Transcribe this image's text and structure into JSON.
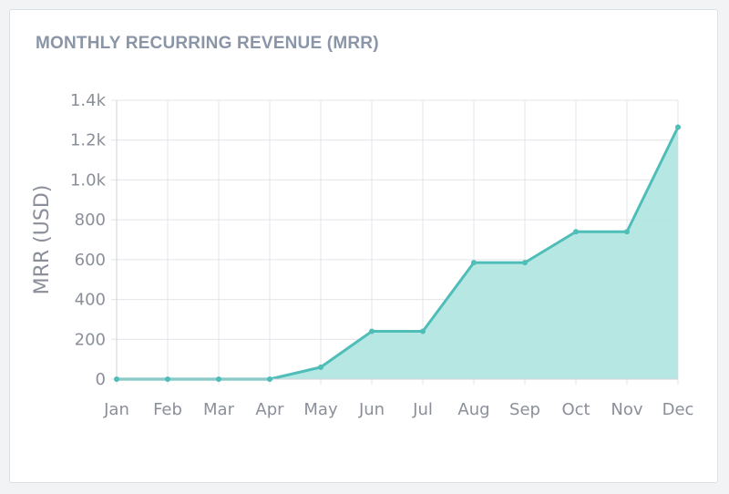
{
  "card": {
    "title": "MONTHLY RECURRING REVENUE (MRR)"
  },
  "colors": {
    "line": "#4fbdb8",
    "area": "#b3e6e2",
    "grid": "#e3e4e9",
    "axis_text": "#8a8f99"
  },
  "chart_data": {
    "type": "area",
    "title": "MONTHLY RECURRING REVENUE (MRR)",
    "xlabel": "",
    "ylabel": "MRR (USD)",
    "categories": [
      "Jan",
      "Feb",
      "Mar",
      "Apr",
      "May",
      "Jun",
      "Jul",
      "Aug",
      "Sep",
      "Oct",
      "Nov",
      "Dec"
    ],
    "values": [
      0,
      0,
      0,
      0,
      60,
      240,
      240,
      585,
      585,
      740,
      740,
      1265
    ],
    "ylim": [
      0,
      1400
    ],
    "yticks": [
      0,
      200,
      400,
      600,
      800,
      1000,
      1200,
      1400
    ],
    "ytick_labels": [
      "0",
      "200",
      "400",
      "600",
      "800",
      "1.0k",
      "1.2k",
      "1.4k"
    ],
    "grid": true,
    "legend": "none"
  }
}
